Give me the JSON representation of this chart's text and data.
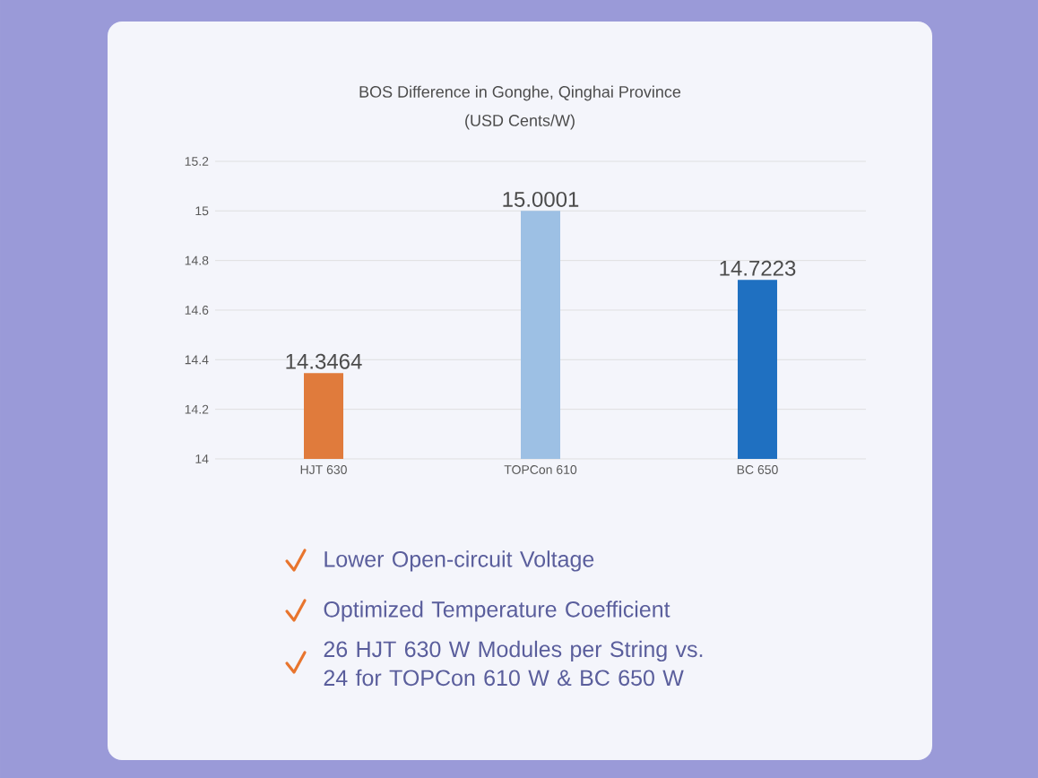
{
  "chart_data": {
    "type": "bar",
    "title": "BOS Difference in Gonghe, Qinghai Province",
    "subtitle": "(USD Cents/W)",
    "categories": [
      "HJT 630",
      "TOPCon 610",
      "BC 650"
    ],
    "values": [
      14.3464,
      15.0001,
      14.7223
    ],
    "colors": [
      "#e07b3c",
      "#9dc0e4",
      "#1f70c1"
    ],
    "ylim": [
      14,
      15.2
    ],
    "yticks": [
      14,
      14.2,
      14.4,
      14.6,
      14.8,
      15,
      15.2
    ],
    "grid": "y",
    "data_labels": true,
    "annotations": [
      "Lower Open-circuit Voltage",
      "Optimized Temperature Coefficient",
      "26 HJT 630 W Modules per String vs. 24 for TOPCon 610 W & BC 650 W"
    ]
  }
}
